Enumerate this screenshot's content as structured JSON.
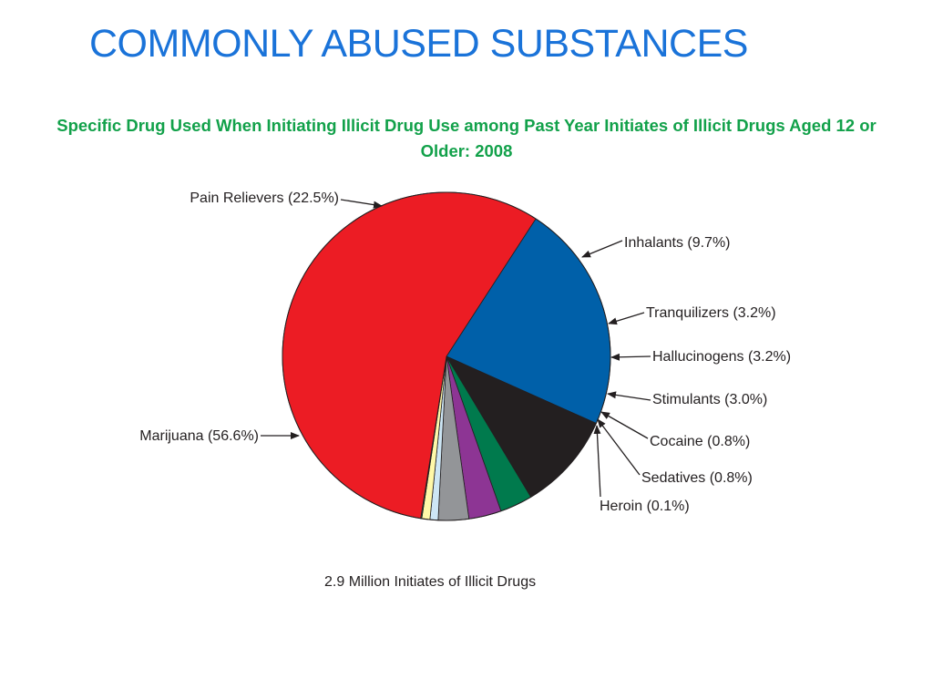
{
  "slide": {
    "title": "COMMONLY ABUSED SUBSTANCES"
  },
  "chart_data": {
    "type": "pie",
    "title": "Specific Drug Used When Initiating Illicit Drug Use among Past Year Initiates of Illicit Drugs Aged 12 or Older: 2008",
    "footnote": "2.9 Million Initiates of Illicit Drugs",
    "slices": [
      {
        "name": "Pain Relievers",
        "value": 22.5,
        "label": "Pain Relievers (22.5%)",
        "color": "#0060a9"
      },
      {
        "name": "Inhalants",
        "value": 9.7,
        "label": "Inhalants (9.7%)",
        "color": "#231f20"
      },
      {
        "name": "Tranquilizers",
        "value": 3.2,
        "label": "Tranquilizers (3.2%)",
        "color": "#007a4d"
      },
      {
        "name": "Hallucinogens",
        "value": 3.2,
        "label": "Hallucinogens (3.2%)",
        "color": "#8d3594"
      },
      {
        "name": "Stimulants",
        "value": 3.0,
        "label": "Stimulants (3.0%)",
        "color": "#939598"
      },
      {
        "name": "Cocaine",
        "value": 0.8,
        "label": "Cocaine (0.8%)",
        "color": "#cde6f5"
      },
      {
        "name": "Sedatives",
        "value": 0.8,
        "label": "Sedatives (0.8%)",
        "color": "#fff8a8"
      },
      {
        "name": "Heroin",
        "value": 0.1,
        "label": "Heroin (0.1%)",
        "color": "#55864a"
      },
      {
        "name": "Marijuana",
        "value": 56.6,
        "label": "Marijuana (56.6%)",
        "color": "#ec1c24"
      }
    ],
    "stroke_color": "#231f20"
  }
}
